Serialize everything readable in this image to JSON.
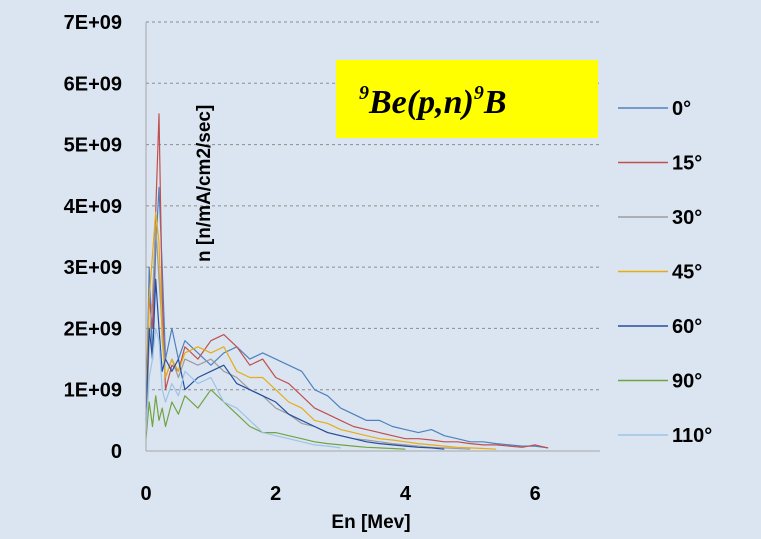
{
  "chart_data": {
    "type": "line",
    "xlabel": "En [Mev]",
    "ylabel": "n [n/mA/cm2/sec]",
    "xlim": [
      0,
      7
    ],
    "ylim": [
      0,
      7000000000
    ],
    "x_ticks": [
      "0",
      "2",
      "4",
      "6"
    ],
    "y_ticks": [
      "0",
      "1E+09",
      "2E+09",
      "3E+09",
      "4E+09",
      "5E+09",
      "6E+09",
      "7E+09"
    ],
    "grid": "horizontal dashed",
    "legend_position": "right",
    "annotation": {
      "pre_sup": "9",
      "main": "Be(p,n)",
      "post_sup": "9",
      "tail": "B",
      "background": "#ffff00"
    },
    "series": [
      {
        "name": "0°",
        "color": "#4f81bd",
        "x": [
          0.0,
          0.05,
          0.1,
          0.15,
          0.2,
          0.25,
          0.3,
          0.4,
          0.5,
          0.6,
          0.8,
          1.0,
          1.2,
          1.4,
          1.6,
          1.8,
          2.0,
          2.2,
          2.4,
          2.6,
          2.8,
          3.0,
          3.2,
          3.4,
          3.6,
          3.8,
          4.0,
          4.2,
          4.4,
          4.6,
          4.8,
          5.0,
          5.2,
          5.4,
          5.6,
          5.8,
          6.0,
          6.2
        ],
        "y": [
          500000000,
          3000000000,
          1500000000,
          3300000000,
          4300000000,
          3000000000,
          1500000000,
          2000000000,
          1500000000,
          1800000000,
          1600000000,
          1400000000,
          1600000000,
          1700000000,
          1500000000,
          1600000000,
          1500000000,
          1400000000,
          1300000000,
          1000000000,
          900000000,
          700000000,
          600000000,
          500000000,
          500000000,
          400000000,
          350000000,
          300000000,
          350000000,
          250000000,
          200000000,
          150000000,
          150000000,
          120000000,
          100000000,
          80000000,
          80000000,
          50000000
        ]
      },
      {
        "name": "15°",
        "color": "#c0504d",
        "x": [
          0.0,
          0.05,
          0.1,
          0.15,
          0.2,
          0.25,
          0.3,
          0.4,
          0.5,
          0.6,
          0.8,
          1.0,
          1.2,
          1.4,
          1.6,
          1.8,
          2.0,
          2.2,
          2.4,
          2.6,
          2.8,
          3.0,
          3.2,
          3.4,
          3.6,
          3.8,
          4.0,
          4.2,
          4.4,
          4.6,
          4.8,
          5.0,
          5.2,
          5.4,
          5.6,
          5.8,
          6.0,
          6.2
        ],
        "y": [
          700000000,
          2500000000,
          2000000000,
          3900000000,
          5500000000,
          2500000000,
          1000000000,
          1400000000,
          1300000000,
          1700000000,
          1500000000,
          1800000000,
          1900000000,
          1700000000,
          1400000000,
          1500000000,
          1200000000,
          1100000000,
          900000000,
          700000000,
          600000000,
          500000000,
          400000000,
          350000000,
          300000000,
          250000000,
          200000000,
          200000000,
          180000000,
          150000000,
          150000000,
          120000000,
          100000000,
          100000000,
          80000000,
          60000000,
          100000000,
          50000000
        ]
      },
      {
        "name": "30°",
        "color": "#9c9c9c",
        "x": [
          0.0,
          0.05,
          0.1,
          0.15,
          0.2,
          0.25,
          0.3,
          0.4,
          0.5,
          0.6,
          0.8,
          1.0,
          1.2,
          1.4,
          1.6,
          1.8,
          2.0,
          2.2,
          2.4,
          2.6,
          2.8,
          3.0,
          3.2,
          3.4,
          3.6,
          3.8,
          4.0,
          4.2,
          4.4,
          4.6,
          4.8,
          5.0
        ],
        "y": [
          300000000,
          1800000000,
          2500000000,
          3700000000,
          2800000000,
          2000000000,
          1200000000,
          1500000000,
          1200000000,
          1500000000,
          1400000000,
          1500000000,
          1300000000,
          1200000000,
          1000000000,
          900000000,
          700000000,
          600000000,
          450000000,
          400000000,
          300000000,
          250000000,
          200000000,
          180000000,
          150000000,
          120000000,
          100000000,
          80000000,
          60000000,
          50000000,
          40000000,
          30000000
        ]
      },
      {
        "name": "45°",
        "color": "#e7ac14",
        "x": [
          0.0,
          0.05,
          0.1,
          0.15,
          0.2,
          0.25,
          0.3,
          0.4,
          0.5,
          0.6,
          0.8,
          1.0,
          1.2,
          1.4,
          1.6,
          1.8,
          2.0,
          2.2,
          2.4,
          2.6,
          2.8,
          3.0,
          3.2,
          3.4,
          3.6,
          3.8,
          4.0,
          4.2,
          4.4,
          4.6,
          4.8,
          5.0,
          5.2,
          5.4
        ],
        "y": [
          500000000,
          2500000000,
          3200000000,
          3900000000,
          3400000000,
          1800000000,
          1200000000,
          1500000000,
          1300000000,
          1600000000,
          1700000000,
          1600000000,
          1700000000,
          1300000000,
          1200000000,
          1200000000,
          1000000000,
          800000000,
          700000000,
          500000000,
          450000000,
          350000000,
          300000000,
          250000000,
          200000000,
          180000000,
          150000000,
          120000000,
          100000000,
          80000000,
          60000000,
          50000000,
          40000000,
          30000000
        ]
      },
      {
        "name": "60°",
        "color": "#264f9e",
        "x": [
          0.0,
          0.05,
          0.1,
          0.15,
          0.2,
          0.25,
          0.3,
          0.4,
          0.5,
          0.6,
          0.8,
          1.0,
          1.2,
          1.4,
          1.6,
          1.8,
          2.0,
          2.2,
          2.4,
          2.6,
          2.8,
          3.0,
          3.2,
          3.4,
          3.6,
          3.8,
          4.0,
          4.2,
          4.4,
          4.6
        ],
        "y": [
          600000000,
          2000000000,
          1500000000,
          2800000000,
          2000000000,
          1300000000,
          1500000000,
          1300000000,
          1500000000,
          1000000000,
          1200000000,
          1300000000,
          1400000000,
          1100000000,
          1000000000,
          900000000,
          800000000,
          600000000,
          500000000,
          400000000,
          300000000,
          250000000,
          200000000,
          150000000,
          120000000,
          100000000,
          80000000,
          60000000,
          50000000,
          30000000
        ]
      },
      {
        "name": "90°",
        "color": "#70a342",
        "x": [
          0.0,
          0.05,
          0.1,
          0.15,
          0.2,
          0.25,
          0.3,
          0.4,
          0.5,
          0.6,
          0.8,
          1.0,
          1.2,
          1.4,
          1.6,
          1.8,
          2.0,
          2.2,
          2.4,
          2.6,
          2.8,
          3.0,
          3.2,
          3.4,
          3.6,
          3.8,
          4.0
        ],
        "y": [
          200000000,
          800000000,
          400000000,
          900000000,
          500000000,
          700000000,
          400000000,
          800000000,
          600000000,
          900000000,
          700000000,
          1000000000,
          800000000,
          600000000,
          400000000,
          300000000,
          300000000,
          250000000,
          200000000,
          150000000,
          120000000,
          100000000,
          80000000,
          60000000,
          50000000,
          40000000,
          30000000
        ]
      },
      {
        "name": "110°",
        "color": "#9dc3e6",
        "x": [
          0.0,
          0.05,
          0.1,
          0.15,
          0.2,
          0.25,
          0.3,
          0.4,
          0.5,
          0.6,
          0.8,
          1.0,
          1.2,
          1.4,
          1.6,
          1.8,
          2.0,
          2.2,
          2.4,
          2.6,
          2.8,
          3.0
        ],
        "y": [
          300000000,
          1200000000,
          1500000000,
          2000000000,
          1800000000,
          1000000000,
          800000000,
          1100000000,
          900000000,
          1300000000,
          1100000000,
          1200000000,
          800000000,
          700000000,
          500000000,
          300000000,
          250000000,
          200000000,
          150000000,
          100000000,
          80000000,
          50000000
        ]
      }
    ]
  }
}
